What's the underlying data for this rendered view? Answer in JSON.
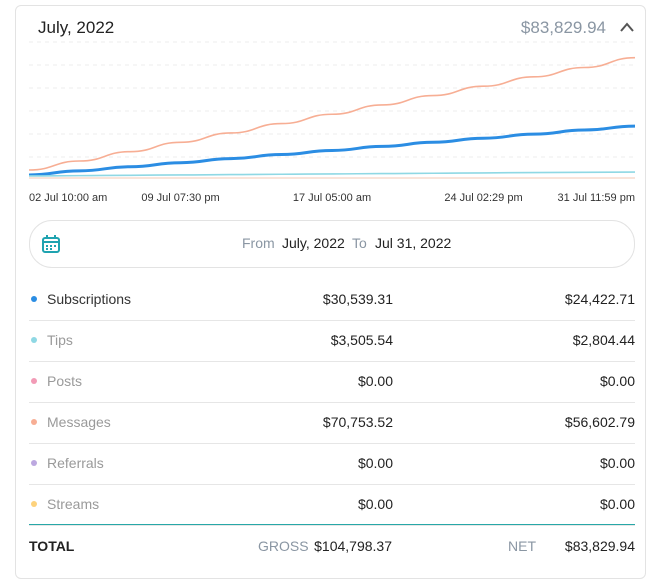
{
  "header": {
    "title": "July, 2022",
    "amount": "$83,829.94"
  },
  "chart": {
    "type": "line",
    "x_labels": [
      "02 Jul 10:00 am",
      "09 Jul 07:30 pm",
      "17 Jul 05:00 am",
      "24 Jul 02:29 pm",
      "31 Jul 11:59 pm"
    ],
    "ylim": [
      0,
      80000
    ],
    "grid": true,
    "series": [
      {
        "name": "Messages",
        "color": "#f7ae94",
        "values": [
          4700,
          10000,
          15500,
          21000,
          26500,
          32000,
          37500,
          43000,
          48500,
          54000,
          59500,
          65000,
          70753
        ]
      },
      {
        "name": "Subscriptions",
        "color": "#2b8de3",
        "values": [
          1800,
          4200,
          6600,
          9000,
          11400,
          13800,
          16200,
          18600,
          21000,
          23400,
          25800,
          28200,
          30539
        ]
      },
      {
        "name": "Tips",
        "color": "#8fd8e4",
        "values": [
          1200,
          1400,
          1600,
          1800,
          2000,
          2200,
          2400,
          2600,
          2800,
          3000,
          3200,
          3350,
          3505
        ]
      }
    ]
  },
  "date_range": {
    "from_label": "From",
    "from": "July, 2022",
    "to_label": "To",
    "to": "Jul 31, 2022"
  },
  "rows": [
    {
      "name": "Subscriptions",
      "gross": "$30,539.31",
      "net": "$24,422.71",
      "color": "#2b8de3"
    },
    {
      "name": "Tips",
      "gross": "$3,505.54",
      "net": "$2,804.44",
      "color": "#8fd8e4"
    },
    {
      "name": "Posts",
      "gross": "$0.00",
      "net": "$0.00",
      "color": "#f29bb6"
    },
    {
      "name": "Messages",
      "gross": "$70,753.52",
      "net": "$56,602.79",
      "color": "#f7ae94"
    },
    {
      "name": "Referrals",
      "gross": "$0.00",
      "net": "$0.00",
      "color": "#bca8e0"
    },
    {
      "name": "Streams",
      "gross": "$0.00",
      "net": "$0.00",
      "color": "#fdd27c"
    }
  ],
  "total": {
    "label": "TOTAL",
    "gross_label": "GROSS",
    "gross": "$104,798.37",
    "net_label": "NET",
    "net": "$83,829.94"
  }
}
